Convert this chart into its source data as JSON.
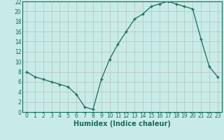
{
  "x": [
    0,
    1,
    2,
    3,
    4,
    5,
    6,
    7,
    8,
    9,
    10,
    11,
    12,
    13,
    14,
    15,
    16,
    17,
    18,
    19,
    20,
    21,
    22,
    23
  ],
  "y": [
    8,
    7,
    6.5,
    6,
    5.5,
    5,
    3.5,
    1,
    0.5,
    6.5,
    10.5,
    13.5,
    16,
    18.5,
    19.5,
    21,
    21.5,
    22,
    21.5,
    21,
    20.5,
    14.5,
    9,
    7
  ],
  "line_color": "#1a6b5a",
  "marker_color": "#1a6b5a",
  "bg_color": "#c8ebe8",
  "grid_major_color": "#b8c8c4",
  "grid_minor_color": "#c0dcd8",
  "axis_color": "#1a6b5a",
  "xlabel": "Humidex (Indice chaleur)",
  "xlim": [
    -0.5,
    23.5
  ],
  "ylim": [
    0,
    22
  ],
  "yticks": [
    0,
    2,
    4,
    6,
    8,
    10,
    12,
    14,
    16,
    18,
    20,
    22
  ],
  "xticks": [
    0,
    1,
    2,
    3,
    4,
    5,
    6,
    7,
    8,
    9,
    10,
    11,
    12,
    13,
    14,
    15,
    16,
    17,
    18,
    19,
    20,
    21,
    22,
    23
  ],
  "tick_fontsize": 5.5,
  "label_fontsize": 7
}
